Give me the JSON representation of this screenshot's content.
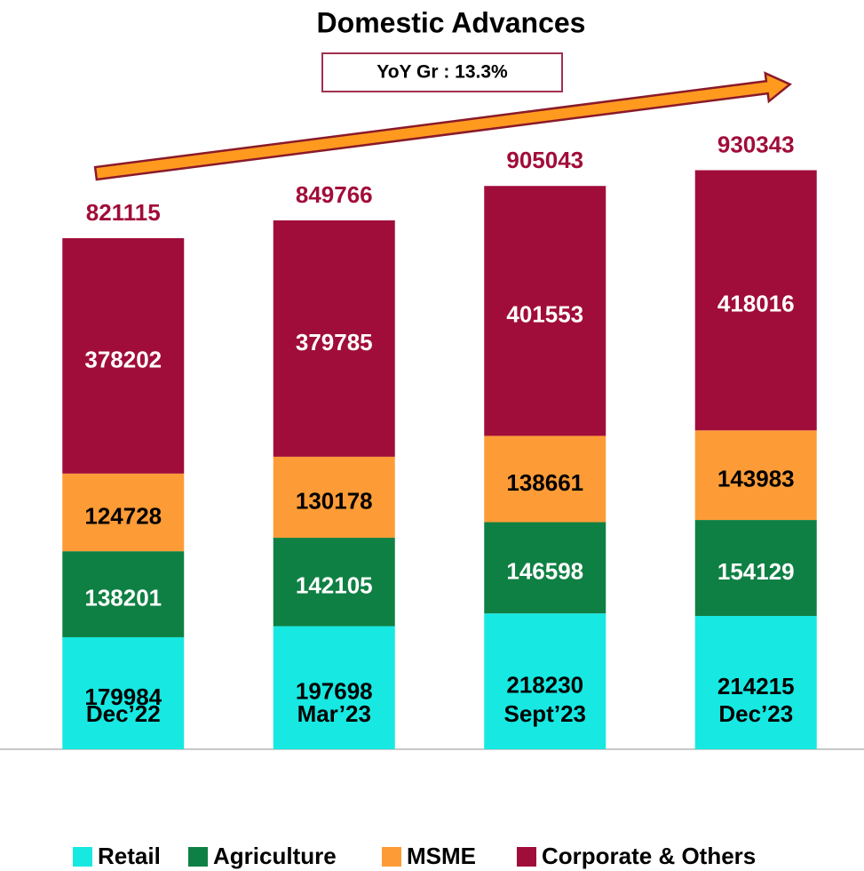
{
  "chart_data": {
    "type": "stacked_bar",
    "title": "Domestic Advances",
    "annotation": "YoY Gr : 13.3%",
    "categories": [
      "Dec’22",
      "Mar’23",
      "Sept’23",
      "Dec’23"
    ],
    "series": [
      {
        "name": "Retail",
        "color": "#17e8e2",
        "values": [
          179984,
          197698,
          218230,
          214215
        ]
      },
      {
        "name": "Agriculture",
        "color": "#0f8043",
        "values": [
          138201,
          142105,
          146598,
          154129
        ]
      },
      {
        "name": "MSME",
        "color": "#fd9c37",
        "values": [
          124728,
          130178,
          138661,
          143983
        ]
      },
      {
        "name": "Corporate & Others",
        "color": "#a10d3a",
        "values": [
          378202,
          379785,
          401553,
          418016
        ]
      }
    ],
    "totals": [
      821115,
      849766,
      905043,
      930343
    ]
  }
}
